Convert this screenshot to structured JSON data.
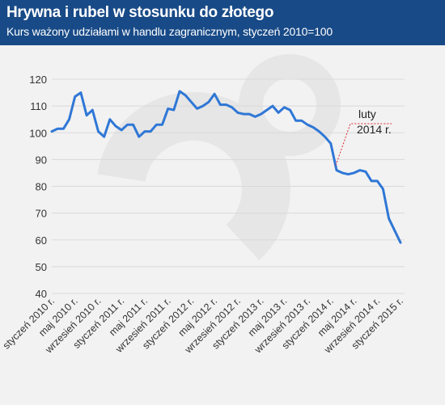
{
  "header": {
    "title": "Hrywna i rubel w stosunku do złotego",
    "subtitle": "Kurs ważony udziałami w handlu zagranicznym, styczeń 2010=100"
  },
  "colors": {
    "header_bg": "#184a87",
    "line": "#2f77d6",
    "annotation": "#e0262f",
    "grid": "#d9d9d9",
    "watermark": "#e6e6e6"
  },
  "chart_data": {
    "type": "line",
    "title": "Hrywna i rubel w stosunku do złotego",
    "subtitle": "Kurs ważony udziałami w handlu zagranicznym, styczeń 2010=100",
    "ylim": [
      40,
      120
    ],
    "yticks": [
      40,
      50,
      60,
      70,
      80,
      90,
      100,
      110,
      120
    ],
    "grid": true,
    "x_tick_labels": [
      "styczeń 2010 r.",
      "maj 2010 r.",
      "wrzesień 2010 r.",
      "styczeń 2011 r.",
      "maj 2011 r.",
      "wrzesień 2011 r.",
      "styczeń 2012 r.",
      "maj 2012 r.",
      "wrzesień 2012 r.",
      "styczeń 2013 r.",
      "maj 2013 r.",
      "wrzesień 2013 r.",
      "styczeń 2014 r.",
      "maj 2014 r.",
      "wrzesień 2014 r.",
      "styczeń 2015 r."
    ],
    "values": [
      100.5,
      101.5,
      101.5,
      105,
      113.5,
      115,
      106.5,
      108.5,
      100.5,
      98.5,
      105,
      102.5,
      101,
      103,
      103,
      98.5,
      100.5,
      100.5,
      103,
      103,
      109,
      108.5,
      115.5,
      114,
      111.5,
      109,
      110,
      111.5,
      114.5,
      110.5,
      110.5,
      109.5,
      107.5,
      107,
      107,
      106,
      107,
      108.5,
      110,
      107.5,
      109.5,
      108.5,
      104.5,
      104.5,
      103,
      102,
      100.5,
      98.5,
      96,
      86,
      85,
      84.5,
      85,
      86,
      85.5,
      82,
      82,
      79,
      68,
      63.5,
      59
    ],
    "annotation": {
      "text_line1": "luty",
      "text_line2": "2014 r.",
      "index": 49
    }
  }
}
